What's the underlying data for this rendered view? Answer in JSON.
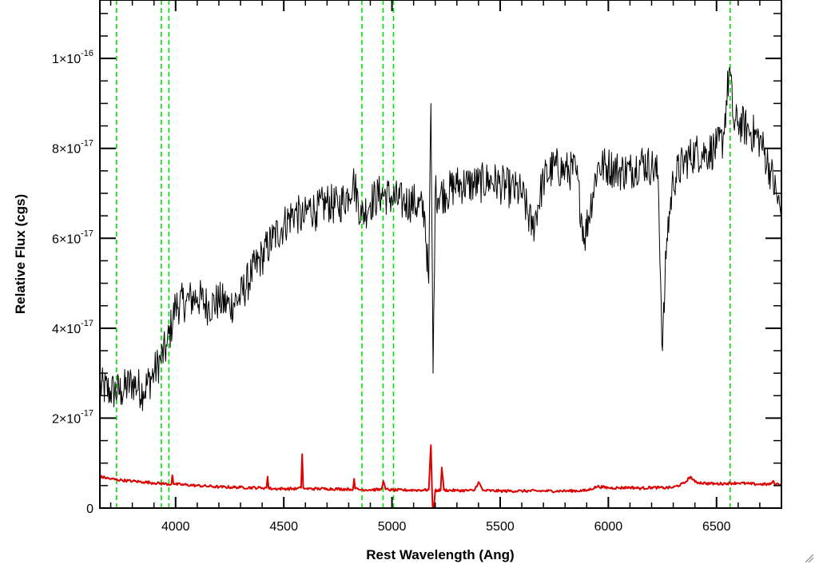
{
  "chart_data": {
    "type": "line",
    "title": "",
    "xlabel": "Rest Wavelength (Ang)",
    "ylabel": "Relative Flux (cgs)",
    "xlim": [
      3650,
      6800
    ],
    "ylim": [
      0,
      1.13e-16
    ],
    "x_ticks": [
      {
        "value": 4000,
        "label": "4000"
      },
      {
        "value": 4500,
        "label": "4500"
      },
      {
        "value": 5000,
        "label": "5000"
      },
      {
        "value": 5500,
        "label": "5500"
      },
      {
        "value": 6000,
        "label": "6000"
      },
      {
        "value": 6500,
        "label": "6500"
      }
    ],
    "y_ticks": [
      {
        "value": 0,
        "mantissa": "0",
        "exponent": ""
      },
      {
        "value": 2e-17,
        "mantissa": "2×10",
        "exponent": "-17"
      },
      {
        "value": 4e-17,
        "mantissa": "4×10",
        "exponent": "-17"
      },
      {
        "value": 6e-17,
        "mantissa": "6×10",
        "exponent": "-17"
      },
      {
        "value": 8e-17,
        "mantissa": "8×10",
        "exponent": "-17"
      },
      {
        "value": 1e-16,
        "mantissa": "1×10",
        "exponent": "-16"
      }
    ],
    "grid": false,
    "vertical_lines": {
      "color": "#00dd00",
      "style": "dashed",
      "x": [
        3727,
        3934,
        3969,
        4861,
        4959,
        5007,
        6563
      ]
    },
    "series": [
      {
        "color": "#000000",
        "x": [
          3650,
          3700,
          3750,
          3800,
          3850,
          3900,
          3930,
          3960,
          4000,
          4050,
          4100,
          4150,
          4200,
          4250,
          4300,
          4350,
          4400,
          4450,
          4500,
          4550,
          4590,
          4620,
          4650,
          4700,
          4750,
          4800,
          4820,
          4860,
          4900,
          4950,
          5000,
          5050,
          5100,
          5150,
          5170,
          5180,
          5190,
          5200,
          5250,
          5300,
          5350,
          5400,
          5450,
          5500,
          5550,
          5600,
          5650,
          5700,
          5750,
          5800,
          5850,
          5890,
          5950,
          6000,
          6050,
          6100,
          6150,
          6200,
          6230,
          6250,
          6270,
          6300,
          6350,
          6400,
          6450,
          6500,
          6530,
          6560,
          6580,
          6600,
          6650,
          6700,
          6750,
          6800
        ],
        "y": [
          2.7e-17,
          2.6e-17,
          2.6e-17,
          2.8e-17,
          2.6e-17,
          3e-17,
          3.3e-17,
          3.6e-17,
          4.5e-17,
          4.6e-17,
          4.7e-17,
          4.5e-17,
          4.6e-17,
          4.5e-17,
          4.7e-17,
          5.2e-17,
          5.6e-17,
          6e-17,
          6.3e-17,
          6.6e-17,
          6.4e-17,
          6.7e-17,
          6.6e-17,
          6.8e-17,
          6.7e-17,
          7e-17,
          7.3e-17,
          6.5e-17,
          6.8e-17,
          7e-17,
          6.9e-17,
          6.8e-17,
          6.8e-17,
          6.6e-17,
          5e-17,
          9e-17,
          3e-17,
          7e-17,
          7e-17,
          7.2e-17,
          7.2e-17,
          7.2e-17,
          7.3e-17,
          7.2e-17,
          7.1e-17,
          7e-17,
          6.2e-17,
          7.3e-17,
          7.6e-17,
          7.5e-17,
          7.5e-17,
          6e-17,
          7.6e-17,
          7.6e-17,
          7.5e-17,
          7.5e-17,
          7.7e-17,
          7.6e-17,
          7.4e-17,
          3.5e-17,
          6e-17,
          7.3e-17,
          7.7e-17,
          7.9e-17,
          7.9e-17,
          8e-17,
          8.2e-17,
          9.8e-17,
          8.5e-17,
          8.6e-17,
          8.4e-17,
          8.2e-17,
          7.5e-17,
          6.5e-17
        ]
      },
      {
        "color": "#dd0000",
        "x": [
          3650,
          3700,
          3750,
          3800,
          3850,
          3900,
          3950,
          3980,
          3985,
          3990,
          4000,
          4100,
          4200,
          4300,
          4400,
          4420,
          4425,
          4430,
          4450,
          4500,
          4560,
          4580,
          4585,
          4590,
          4600,
          4700,
          4800,
          4820,
          4825,
          4830,
          4850,
          4950,
          4960,
          4970,
          5000,
          5100,
          5150,
          5170,
          5180,
          5185,
          5190,
          5200,
          5210,
          5225,
          5230,
          5240,
          5300,
          5380,
          5400,
          5420,
          5500,
          5600,
          5700,
          5800,
          5900,
          5950,
          6000,
          6050,
          6100,
          6150,
          6200,
          6250,
          6300,
          6350,
          6380,
          6400,
          6450,
          6500,
          6550,
          6600,
          6650,
          6700,
          6750,
          6760,
          6770,
          6800
        ],
        "y": [
          7e-18,
          6.5e-18,
          6.2e-18,
          6e-18,
          5.8e-18,
          5.6e-18,
          5.4e-18,
          5.3e-18,
          7.3e-18,
          5.4e-18,
          5.3e-18,
          5e-18,
          4.7e-18,
          4.6e-18,
          4.5e-18,
          4.5e-18,
          7e-18,
          4.4e-18,
          4.3e-18,
          4.3e-18,
          4.3e-18,
          4.5e-18,
          1.2e-17,
          4.6e-18,
          4.3e-18,
          4.3e-18,
          4.2e-18,
          4.2e-18,
          6.5e-18,
          4.3e-18,
          4.1e-18,
          4.1e-18,
          6e-18,
          4.2e-18,
          4e-18,
          4e-18,
          4e-18,
          4.1e-18,
          1.4e-17,
          4e-18,
          -2e-18,
          4e-18,
          3.9e-18,
          4e-18,
          9e-18,
          4e-18,
          3.9e-18,
          3.9e-18,
          5.8e-18,
          3.9e-18,
          3.8e-18,
          3.8e-18,
          3.8e-18,
          3.8e-18,
          3.9e-18,
          4.8e-18,
          4.5e-18,
          4.5e-18,
          4.6e-18,
          4.4e-18,
          4.6e-18,
          4.5e-18,
          4.6e-18,
          5.5e-18,
          7e-18,
          5.8e-18,
          5.5e-18,
          5.4e-18,
          5.5e-18,
          5.6e-18,
          5.4e-18,
          5.3e-18,
          5.3e-18,
          6e-18,
          5.3e-18,
          5.4e-18
        ]
      }
    ]
  }
}
